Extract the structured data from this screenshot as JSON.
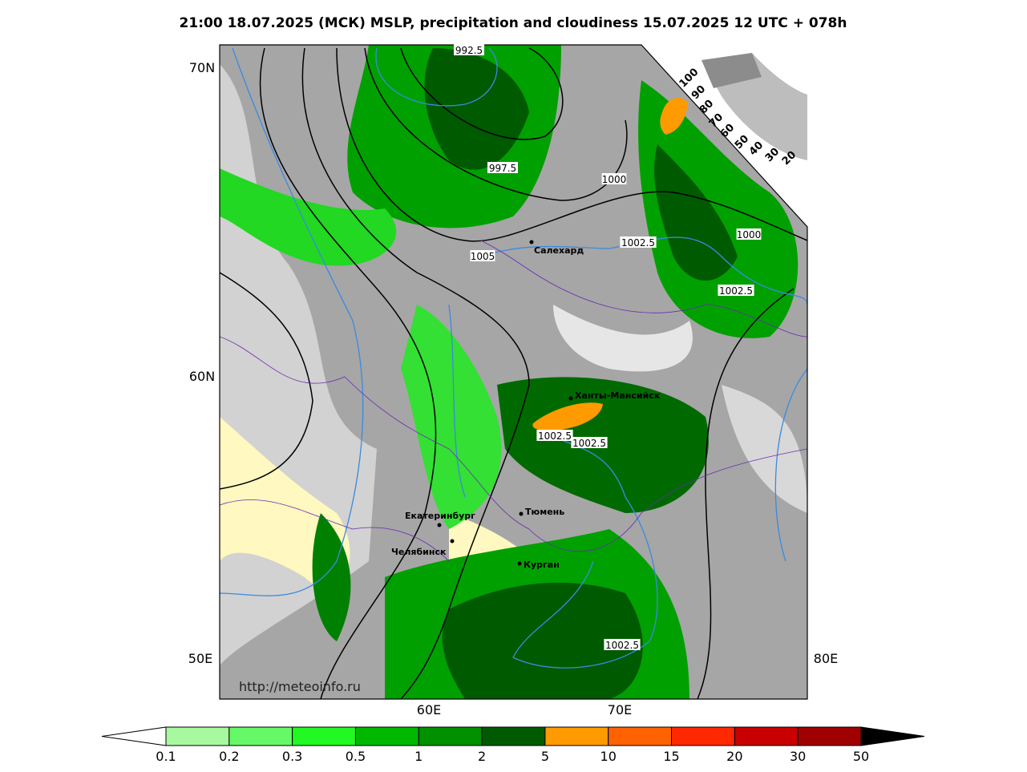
{
  "title": "21:00 18.07.2025 (МСК) MSLP, precipitation and cloudiness 15.07.2025 12 UTC + 078h",
  "lat_labels": [
    "70N",
    "60N"
  ],
  "lon_labels": [
    "50E",
    "60E",
    "70E",
    "80E"
  ],
  "source": "http://meteoinfo.ru",
  "cities": [
    "Салехард",
    "Ханты-Мансийск",
    "Екатеринбург",
    "Тюмень",
    "Челябинск",
    "Курган"
  ],
  "isobar_labels": [
    "992.5",
    "997.5",
    "1000",
    "1005",
    "1002.5",
    "1000",
    "1002.5",
    "1002.5",
    "1002.5",
    "1002.5"
  ],
  "cloud_scale": [
    "100",
    "90",
    "80",
    "70",
    "60",
    "50",
    "40",
    "30",
    "20"
  ],
  "legend": {
    "labels": [
      "0.1",
      "0.2",
      "0.3",
      "0.5",
      "1",
      "2",
      "5",
      "10",
      "15",
      "20",
      "30",
      "50"
    ],
    "colors": [
      "#a8f8a0",
      "#66f866",
      "#22f822",
      "#00b800",
      "#009000",
      "#005a00",
      "#ff9a00",
      "#ff6200",
      "#ff2800",
      "#c80000",
      "#a00000"
    ]
  }
}
